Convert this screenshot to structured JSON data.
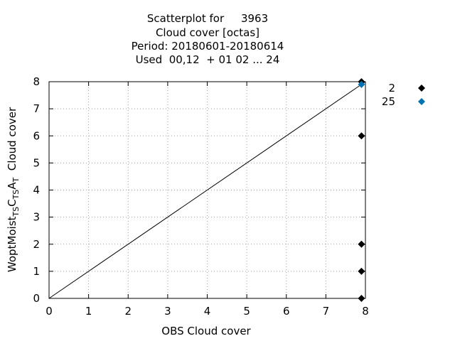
{
  "chart_data": {
    "type": "scatter",
    "title_lines": [
      "Scatterplot for     3963",
      "Cloud cover [octas]",
      "Period: 20180601-20180614",
      "Used  00,12  + 01 02 ... 24"
    ],
    "xlabel": "OBS Cloud cover",
    "ylabel_parts": [
      "WoptMoist",
      "TS",
      "C",
      "TS",
      "A",
      "T",
      "  Cloud cover"
    ],
    "xlim": [
      0,
      8
    ],
    "ylim": [
      0,
      8
    ],
    "xticks": [
      "0",
      "1",
      "2",
      "3",
      "4",
      "5",
      "6",
      "7",
      "8"
    ],
    "yticks": [
      "0",
      "1",
      "2",
      "3",
      "4",
      "5",
      "6",
      "7",
      "8"
    ],
    "grid": true,
    "diagonal_line": true,
    "legend_placement": "top-right outside",
    "series": [
      {
        "name": "2",
        "color": "#000000",
        "x": [
          7.9,
          7.9,
          7.9,
          7.9,
          7.9
        ],
        "y": [
          0,
          1,
          2,
          6,
          8
        ]
      },
      {
        "name": "25",
        "color": "#0072b2",
        "x": [
          7.9
        ],
        "y": [
          7.9
        ]
      }
    ]
  }
}
